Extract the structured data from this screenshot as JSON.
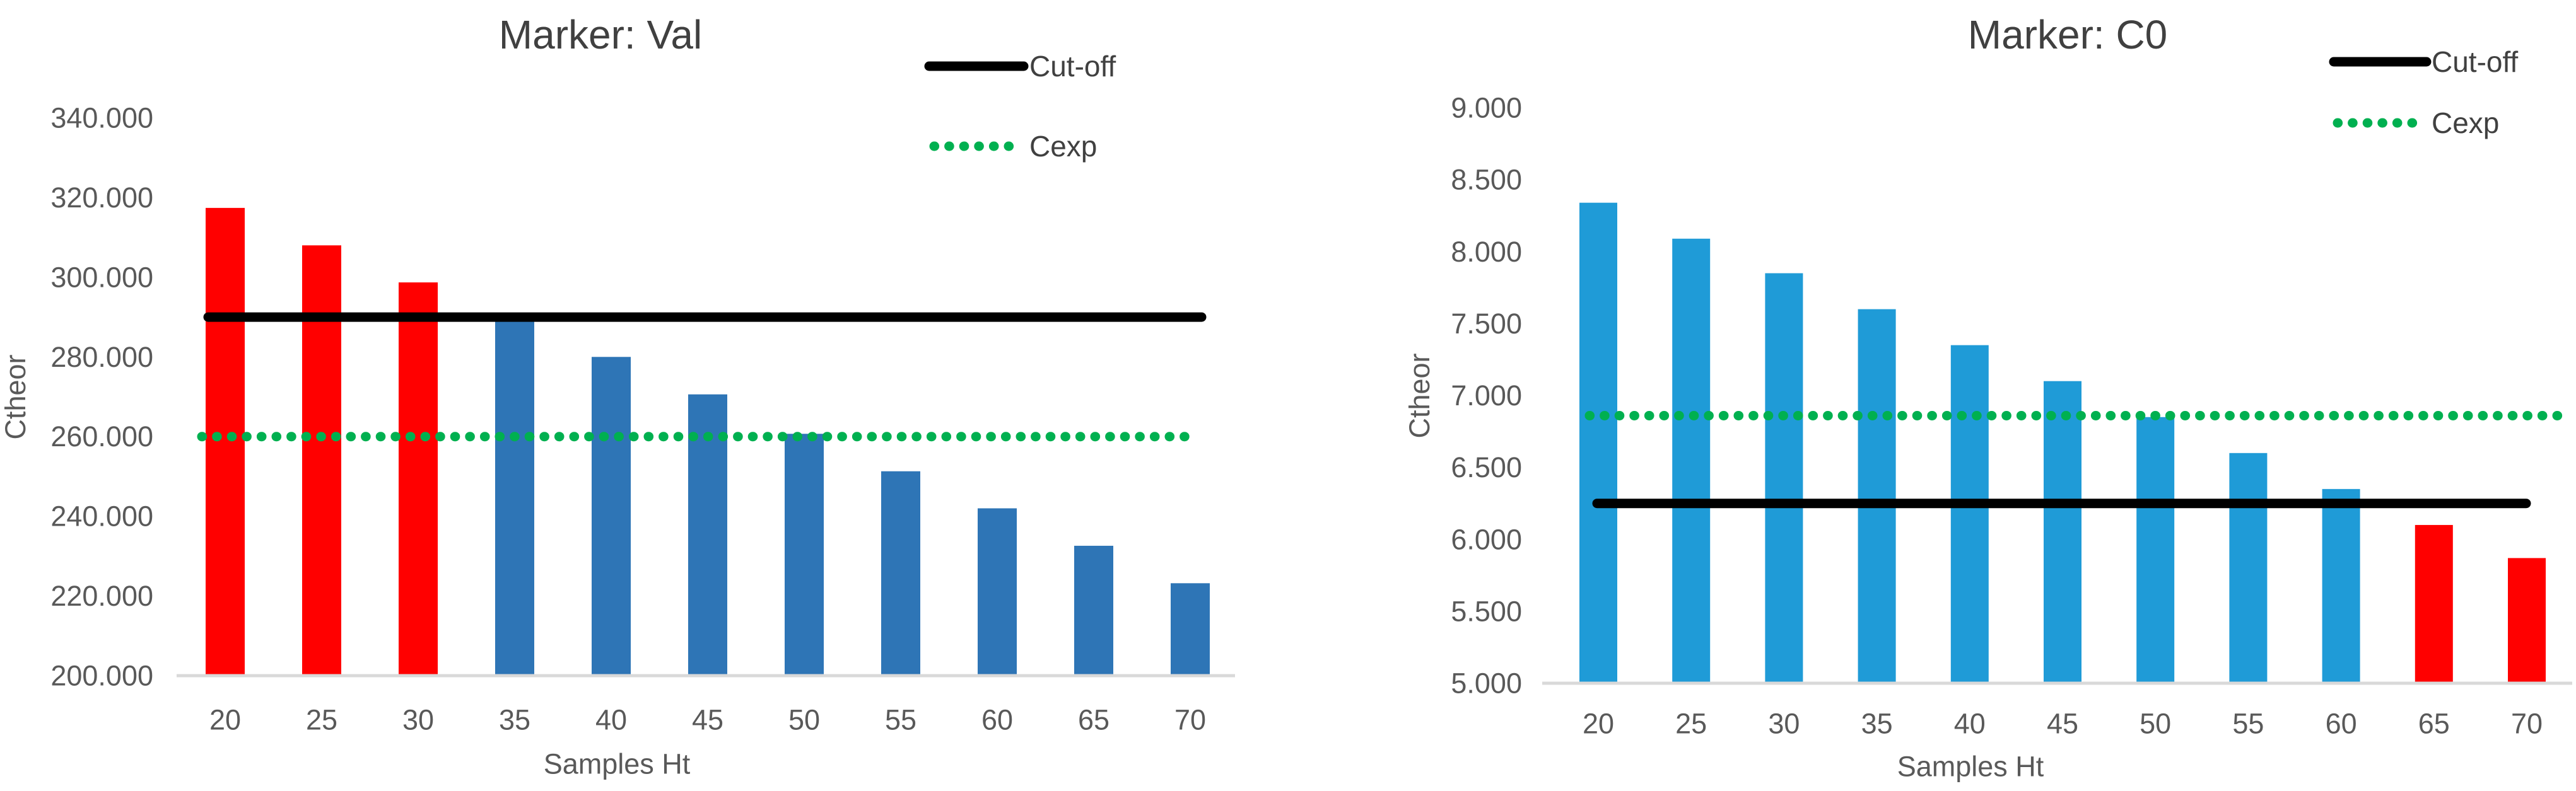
{
  "page": {
    "background": "#ffffff"
  },
  "legend": {
    "cutoff_label": "Cut-off",
    "cexp_label": "Cexp"
  },
  "chart_data": [
    {
      "type": "bar",
      "title": "Marker: Val",
      "ylabel": "Ctheor",
      "xlabel": "Samples Ht",
      "categories": [
        "20",
        "25",
        "30",
        "35",
        "40",
        "45",
        "50",
        "55",
        "60",
        "65",
        "70"
      ],
      "values": [
        317.4,
        308.0,
        298.7,
        289.3,
        280.0,
        270.6,
        260.7,
        251.3,
        242.0,
        232.6,
        223.2
      ],
      "bar_colors": [
        "#FF0000",
        "#FF0000",
        "#FF0000",
        "#2E75B6",
        "#2E75B6",
        "#2E75B6",
        "#2E75B6",
        "#2E75B6",
        "#2E75B6",
        "#2E75B6",
        "#2E75B6"
      ],
      "highlight_color": "#FF0000",
      "default_color": "#2E75B6",
      "ylim": [
        200,
        340
      ],
      "y_step": 20,
      "y_tick_labels": [
        "340.000",
        "320.000",
        "300.000",
        "280.000",
        "260.000",
        "240.000",
        "220.000",
        "200.000"
      ],
      "grid": false,
      "legend_position": "top-right",
      "reference_lines": [
        {
          "name": "Cut-off",
          "value": 290.0,
          "style": "solid",
          "color": "#000000"
        },
        {
          "name": "Cexp",
          "value": 260.0,
          "style": "dotted",
          "color": "#00B050"
        }
      ],
      "legend": [
        {
          "label": "Cut-off",
          "style": "solid",
          "color": "#000000"
        },
        {
          "label": "Cexp",
          "style": "dotted",
          "color": "#00B050"
        }
      ]
    },
    {
      "type": "bar",
      "title": "Marker: C0",
      "ylabel": "Ctheor",
      "xlabel": "Samples Ht",
      "categories": [
        "20",
        "25",
        "30",
        "35",
        "40",
        "45",
        "50",
        "55",
        "60",
        "65",
        "70"
      ],
      "values": [
        8.34,
        8.09,
        7.85,
        7.6,
        7.35,
        7.1,
        6.85,
        6.6,
        6.35,
        6.1,
        5.87
      ],
      "bar_colors": [
        "#1F9BD7",
        "#1F9BD7",
        "#1F9BD7",
        "#1F9BD7",
        "#1F9BD7",
        "#1F9BD7",
        "#1F9BD7",
        "#1F9BD7",
        "#1F9BD7",
        "#FF0000",
        "#FF0000"
      ],
      "highlight_color": "#FF0000",
      "default_color": "#1F9BD7",
      "ylim": [
        5,
        9
      ],
      "y_step": 0.5,
      "y_tick_labels": [
        "9.000",
        "8.500",
        "8.000",
        "7.500",
        "7.000",
        "6.500",
        "6.000",
        "5.500",
        "5.000"
      ],
      "grid": false,
      "legend_position": "top-right",
      "reference_lines": [
        {
          "name": "Cut-off",
          "value": 6.25,
          "style": "solid",
          "color": "#000000"
        },
        {
          "name": "Cexp",
          "value": 6.86,
          "style": "dotted",
          "color": "#00B050"
        }
      ],
      "legend": [
        {
          "label": "Cut-off",
          "style": "solid",
          "color": "#000000"
        },
        {
          "label": "Cexp",
          "style": "dotted",
          "color": "#00B050"
        }
      ]
    }
  ],
  "colors": {
    "axis_text": "#595959",
    "title_text": "#404040",
    "baseline": "#D9D9D9",
    "cutoff_line": "#000000",
    "cexp_line": "#00B050"
  }
}
